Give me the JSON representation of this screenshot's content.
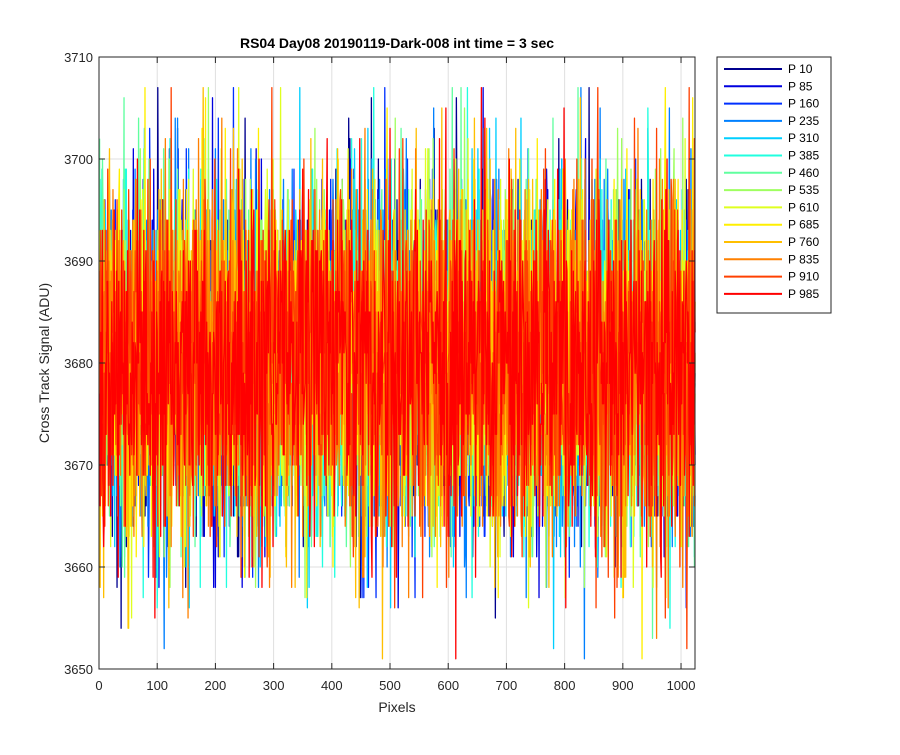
{
  "chart_data": {
    "type": "line",
    "title": "RS04 Day08 20190119-Dark-008 int time = 3 sec",
    "xlabel": "Pixels",
    "ylabel": "Cross Track Signal (ADU)",
    "xlim": [
      0,
      1024
    ],
    "ylim": [
      3650,
      3710
    ],
    "x_ticks": [
      0,
      100,
      200,
      300,
      400,
      500,
      600,
      700,
      800,
      900,
      1000
    ],
    "y_ticks": [
      3650,
      3660,
      3670,
      3680,
      3690,
      3700,
      3710
    ],
    "grid": true,
    "legend_position": "outside-top-right",
    "x_range": [
      1,
      1024
    ],
    "noise_model": {
      "mean": 3680,
      "std_dev": 8.5,
      "min": 3651,
      "max": 3707
    },
    "series": [
      {
        "name": "P 10",
        "color": "#00008F"
      },
      {
        "name": "P 85",
        "color": "#0000DF"
      },
      {
        "name": "P 160",
        "color": "#0030FF"
      },
      {
        "name": "P 235",
        "color": "#0080FF"
      },
      {
        "name": "P 310",
        "color": "#00CFFF"
      },
      {
        "name": "P 385",
        "color": "#20FFDF"
      },
      {
        "name": "P 460",
        "color": "#60FF9F"
      },
      {
        "name": "P 535",
        "color": "#9FFF60"
      },
      {
        "name": "P 610",
        "color": "#DFFF20"
      },
      {
        "name": "P 685",
        "color": "#FFEF00"
      },
      {
        "name": "P 760",
        "color": "#FFBF00"
      },
      {
        "name": "P 835",
        "color": "#FF8000"
      },
      {
        "name": "P 910",
        "color": "#FF4000"
      },
      {
        "name": "P 985",
        "color": "#FF0000"
      }
    ]
  }
}
